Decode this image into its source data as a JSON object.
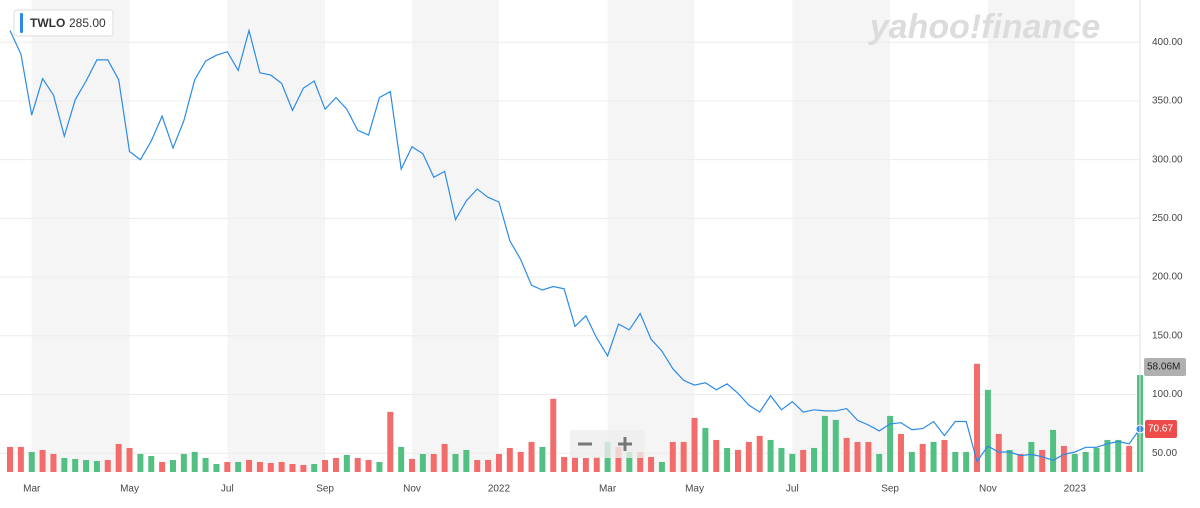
{
  "chart_data": {
    "type": "line",
    "watermark": "yahoo!finance",
    "last_quote": "285.00",
    "categories": [
      null,
      null,
      "Mar",
      null,
      null,
      null,
      null,
      null,
      null,
      null,
      null,
      "May",
      null,
      null,
      null,
      null,
      null,
      null,
      null,
      null,
      "Jul",
      null,
      null,
      null,
      null,
      null,
      null,
      null,
      null,
      "Sep",
      null,
      null,
      null,
      null,
      null,
      null,
      null,
      "Nov",
      null,
      null,
      null,
      null,
      null,
      null,
      null,
      "2022",
      null,
      null,
      null,
      null,
      null,
      null,
      null,
      null,
      null,
      "Mar",
      null,
      null,
      null,
      null,
      null,
      null,
      null,
      "May",
      null,
      null,
      null,
      null,
      null,
      null,
      null,
      null,
      "Jul",
      null,
      null,
      null,
      null,
      null,
      null,
      null,
      null,
      "Sep",
      null,
      null,
      null,
      null,
      null,
      null,
      null,
      null,
      "Nov",
      null,
      null,
      null,
      null,
      null,
      null,
      null,
      "2023",
      null,
      null,
      null,
      null,
      null,
      null
    ],
    "series": [
      {
        "name": "TWLO",
        "color": "#2c8be6",
        "last_label": "70.67",
        "values": [
          410,
          390,
          338,
          369,
          355,
          320,
          351,
          367,
          385,
          385,
          368,
          307,
          300,
          316,
          337,
          310,
          333,
          368,
          384,
          389,
          392,
          376,
          410,
          374,
          372,
          365,
          342,
          361,
          367,
          343,
          353,
          343,
          325,
          321,
          353,
          358,
          292,
          311,
          305,
          285,
          290,
          249,
          265,
          275,
          268,
          264,
          231,
          215,
          193,
          189,
          192,
          190,
          158,
          167,
          148,
          133,
          160,
          155,
          169,
          147,
          137,
          122,
          112,
          108,
          110,
          104,
          109,
          101,
          91,
          85,
          99,
          87,
          94,
          85,
          87,
          86,
          86,
          88,
          78,
          74,
          69,
          75,
          76,
          70,
          71,
          77,
          65,
          77,
          77,
          43,
          56,
          51,
          51,
          48,
          49,
          47,
          44,
          49,
          51,
          55,
          55,
          58,
          60,
          58,
          70.67
        ]
      }
    ],
    "volume": {
      "up_color": "#52c083",
      "down_color": "#f36c6c",
      "last_label": "58.06M",
      "values": [
        15,
        15,
        12,
        13.2,
        10.8,
        8.4,
        7.8,
        7.2,
        6.6,
        7.2,
        16.8,
        14.4,
        10.8,
        9.6,
        6,
        7.2,
        10.8,
        12,
        8.4,
        4.8,
        6,
        6,
        7.2,
        6,
        5.4,
        6,
        4.8,
        4.2,
        4.8,
        7.2,
        8.4,
        10.2,
        8.4,
        7.2,
        6,
        36,
        15,
        7.8,
        10.8,
        10.8,
        16.8,
        10.8,
        13.2,
        7.2,
        7.2,
        10.8,
        14.4,
        12,
        18,
        15,
        43.8,
        9,
        9,
        8.4,
        9,
        18,
        15,
        12,
        12,
        9,
        6,
        18,
        18,
        32.4,
        26.4,
        19.2,
        14.4,
        13.2,
        18,
        21.6,
        19.2,
        14.4,
        10.8,
        13.2,
        14.4,
        33.6,
        31.2,
        20.4,
        18,
        18,
        10.8,
        33.6,
        22.8,
        12,
        16.8,
        18,
        19.2,
        12,
        12,
        64.8,
        49.2,
        22.8,
        13.2,
        10.8,
        18,
        13.2,
        25.2,
        15.6,
        10.8,
        12,
        14.4,
        19.2,
        19.2,
        15.6,
        58.06
      ],
      "up": [
        false,
        false,
        true,
        false,
        false,
        true,
        true,
        true,
        true,
        false,
        false,
        false,
        true,
        true,
        false,
        true,
        true,
        true,
        true,
        true,
        false,
        true,
        false,
        false,
        false,
        false,
        false,
        false,
        true,
        false,
        false,
        true,
        false,
        false,
        true,
        false,
        true,
        false,
        true,
        false,
        false,
        true,
        true,
        false,
        false,
        false,
        false,
        false,
        false,
        true,
        false,
        false,
        false,
        false,
        false,
        true,
        false,
        true,
        false,
        false,
        true,
        false,
        false,
        false,
        true,
        false,
        true,
        false,
        false,
        false,
        true,
        true,
        true,
        false,
        true,
        true,
        true,
        false,
        false,
        false,
        true,
        true,
        false,
        true,
        false,
        true,
        false,
        true,
        true,
        false,
        true,
        false,
        true,
        false,
        true,
        false,
        true,
        false,
        true,
        true,
        true,
        true,
        true,
        false,
        true
      ]
    },
    "ylim": [
      34,
      436
    ],
    "yticks": [
      {
        "value": 50,
        "label": "50.00"
      },
      {
        "value": 100,
        "label": "100.00"
      },
      {
        "value": 150,
        "label": "150.00"
      },
      {
        "value": 200,
        "label": "200.00"
      },
      {
        "value": 250,
        "label": "250.00"
      },
      {
        "value": 300,
        "label": "300.00"
      },
      {
        "value": 350,
        "label": "350.00"
      },
      {
        "value": 400,
        "label": "400.00"
      }
    ],
    "grid": true
  }
}
